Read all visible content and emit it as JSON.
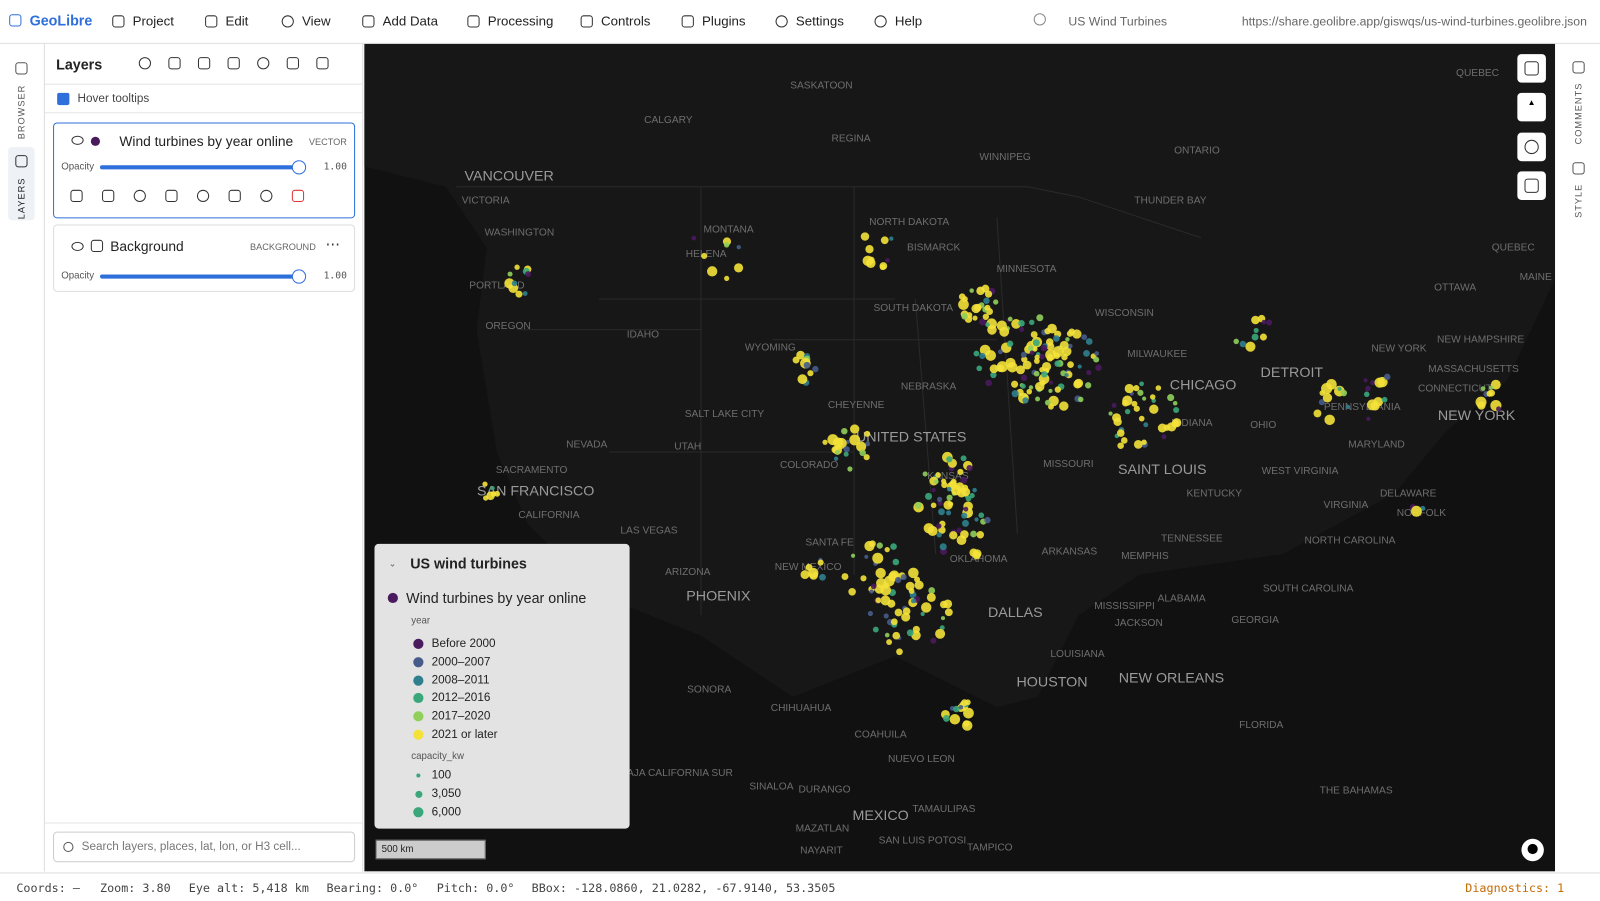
{
  "menu": {
    "brand": "GeoLibre",
    "items": [
      "Project",
      "Edit",
      "View",
      "Add Data",
      "Processing",
      "Controls",
      "Plugins",
      "Settings",
      "Help"
    ],
    "project_title": "US Wind Turbines",
    "url": "https://share.geolibre.app/giswqs/us-wind-turbines.geolibre.json"
  },
  "left_tabs": [
    "BROWSER",
    "LAYERS"
  ],
  "right_tabs": [
    "COMMENTS",
    "STYLE"
  ],
  "layers_panel": {
    "title": "Layers",
    "hover_tooltips": "Hover tooltips",
    "layers": [
      {
        "name": "Wind turbines by year online",
        "kind": "VECTOR",
        "opacity_label": "Opacity",
        "opacity": "1.00"
      },
      {
        "name": "Background",
        "kind": "BACKGROUND",
        "opacity_label": "Opacity",
        "opacity": "1.00"
      }
    ],
    "search_placeholder": "Search layers, places, lat, lon, or H3 cell..."
  },
  "legend": {
    "title": "US wind turbines",
    "layer": "Wind turbines by year online",
    "color_field": "year",
    "classes": [
      {
        "label": "Before 2000",
        "color": "#4a1a5e"
      },
      {
        "label": "2000–2007",
        "color": "#475c8a"
      },
      {
        "label": "2008–2011",
        "color": "#2f7f8e"
      },
      {
        "label": "2012–2016",
        "color": "#3aa77b"
      },
      {
        "label": "2017–2020",
        "color": "#8fcf5a"
      },
      {
        "label": "2021 or later",
        "color": "#f4e23a"
      }
    ],
    "size_field": "capacity_kw",
    "sizes": [
      "100",
      "3,050",
      "6,000"
    ]
  },
  "scale_bar": "500 km",
  "map_labels": [
    "SASKATOON",
    "CALGARY",
    "REGINA",
    "WINNIPEG",
    "ONTARIO",
    "QUEBEC",
    "VANCOUVER",
    "VICTORIA",
    "THUNDER BAY",
    "NORTH DAKOTA",
    "MONTANA",
    "WASHINGTON",
    "BISMARCK",
    "HELENA",
    "QUEBEC",
    "MINNESOTA",
    "MAINE",
    "OTTAWA",
    "PORTLAND",
    "SOUTH DAKOTA",
    "WISCONSIN",
    "OREGON",
    "IDAHO",
    "NEW HAMPSHIRE",
    "MILWAUKEE",
    "WYOMING",
    "NEW YORK",
    "MASSACHUSETTS",
    "CHICAGO",
    "DETROIT",
    "NEBRASKA",
    "CONNECTICUT",
    "SALT LAKE CITY",
    "CHEYENNE",
    "PENNSYLVANIA",
    "NEW YORK",
    "UNITED STATES",
    "NEVADA",
    "UTAH",
    "OHIO",
    "INDIANA",
    "MARYLAND",
    "COLORADO",
    "MISSOURI",
    "SAINT LOUIS",
    "WEST VIRGINIA",
    "SACRAMENTO",
    "KANSAS",
    "SAN FRANCISCO",
    "KENTUCKY",
    "DELAWARE",
    "CALIFORNIA",
    "VIRGINIA",
    "NORFOLK",
    "LAS VEGAS",
    "TENNESSEE",
    "SANTA FE",
    "NORTH CAROLINA",
    "ARKANSAS",
    "MEMPHIS",
    "OKLAHOMA",
    "ARIZONA",
    "NEW MEXICO",
    "ALABAMA",
    "SOUTH CAROLINA",
    "PHOENIX",
    "DALLAS",
    "MISSISSIPPI",
    "GEORGIA",
    "JACKSON",
    "LOUISIANA",
    "SONORA",
    "HOUSTON",
    "NEW ORLEANS",
    "CHIHUAHUA",
    "FLORIDA",
    "COAHUILA",
    "NUEVO LEON",
    "BAJA CALIFORNIA SUR",
    "SINALOA",
    "DURANGO",
    "THE BAHAMAS",
    "MEXICO",
    "TAMAULIPAS",
    "MAZATLAN",
    "SAN LUIS POTOSI",
    "NAYARIT",
    "TAMPICO"
  ],
  "status": {
    "coords": "Coords: —",
    "zoom": "Zoom: 3.80",
    "eye_alt": "Eye alt: 5,418 km",
    "bearing": "Bearing: 0.0°",
    "pitch": "Pitch: 0.0°",
    "bbox": "BBox: -128.0860, 21.0282, -67.9140, 53.3505",
    "diagnostics": "Diagnostics: 1"
  }
}
